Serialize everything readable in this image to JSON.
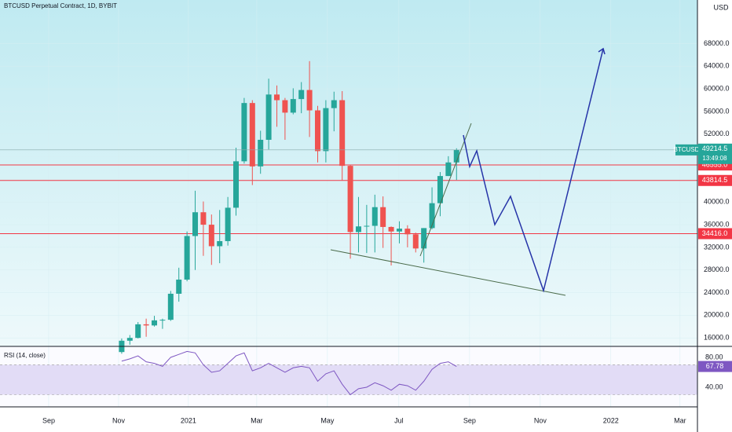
{
  "chart_data": {
    "type": "candlestick",
    "title": "BTCUSD Perpetual Contract, 1D, BYBIT",
    "currency": "USD",
    "symbol": "BTCUSD",
    "countdown": "13:49:08",
    "categories": [
      null,
      null,
      null,
      null,
      null,
      null,
      null,
      null,
      null,
      null,
      null,
      null,
      null,
      null,
      null,
      null,
      null,
      null,
      null,
      null,
      null,
      null,
      null,
      null,
      null,
      null,
      null,
      null,
      null,
      null,
      null,
      null,
      null,
      null,
      null,
      null,
      null,
      null,
      null,
      null,
      null,
      null
    ],
    "open": [
      13500,
      15500,
      16000,
      18400,
      18200,
      19100,
      19200,
      23800,
      26300,
      34000,
      38200,
      36000,
      32200,
      33100,
      39000,
      47200,
      57500,
      46300,
      51000,
      59000,
      58000,
      55800,
      58200,
      59800,
      56200,
      49000,
      56600,
      58000,
      46400,
      34700,
      35700,
      35800,
      39100,
      35600,
      34800,
      35300,
      34300,
      31800,
      35400,
      39800,
      44600,
      47000
    ],
    "high": [
      15900,
      16500,
      18800,
      19400,
      19900,
      19400,
      24300,
      28400,
      34800,
      42000,
      40100,
      37800,
      38600,
      40900,
      49600,
      58400,
      58000,
      52600,
      61800,
      60600,
      58400,
      60100,
      61200,
      64900,
      57000,
      58000,
      59500,
      59600,
      46600,
      40900,
      39500,
      41300,
      41000,
      35700,
      36600,
      35900,
      34600,
      35400,
      42600,
      45300,
      48100,
      49500
    ],
    "low": [
      13200,
      14800,
      15900,
      16200,
      18000,
      17600,
      19000,
      22400,
      26000,
      28000,
      30500,
      28900,
      29200,
      32300,
      37600,
      46800,
      43000,
      45000,
      49300,
      53300,
      51000,
      55500,
      55700,
      51500,
      47000,
      47000,
      52500,
      43800,
      30000,
      31100,
      31000,
      31100,
      31900,
      28800,
      32700,
      32000,
      31100,
      29300,
      35200,
      37500,
      44600,
      43900
    ],
    "close": [
      15500,
      16000,
      18400,
      18200,
      19100,
      19200,
      23800,
      26300,
      34000,
      38200,
      36000,
      32200,
      33100,
      39000,
      47200,
      57500,
      46300,
      51000,
      59000,
      58000,
      55800,
      58200,
      59800,
      56200,
      49000,
      56600,
      58000,
      46400,
      34700,
      35700,
      35800,
      39100,
      35600,
      34800,
      35300,
      34300,
      31800,
      35400,
      39800,
      44600,
      47000,
      49214.5
    ],
    "up_color": "#26a69a",
    "down_color": "#ef5350",
    "xlim": [
      -14.9,
      70.5
    ],
    "xticks": [
      {
        "value": -8.94,
        "label": "Sep"
      },
      {
        "value": -0.38,
        "label": "Nov"
      },
      {
        "value": 8.17,
        "label": "2021"
      },
      {
        "value": 16.54,
        "label": "Mar"
      },
      {
        "value": 25.19,
        "label": "May"
      },
      {
        "value": 33.94,
        "label": "Jul"
      },
      {
        "value": 42.6,
        "label": "Sep"
      },
      {
        "value": 51.25,
        "label": "Nov"
      },
      {
        "value": 59.9,
        "label": "2022"
      },
      {
        "value": 68.37,
        "label": "Mar"
      }
    ],
    "ylim": [
      14500,
      75700
    ],
    "yticks": [
      {
        "value": 16000,
        "label": "16000.0"
      },
      {
        "value": 20000,
        "label": "20000.0"
      },
      {
        "value": 24000,
        "label": "24000.0"
      },
      {
        "value": 28000,
        "label": "28000.0"
      },
      {
        "value": 32000,
        "label": "32000.0"
      },
      {
        "value": 36000,
        "label": "36000.0"
      },
      {
        "value": 40000,
        "label": "40000.0"
      },
      {
        "value": 44000,
        "label": "44000.0"
      },
      {
        "value": 48000,
        "label": "48000.0"
      },
      {
        "value": 52000,
        "label": "52000.0"
      },
      {
        "value": 56000,
        "label": "56000.0"
      },
      {
        "value": 60000,
        "label": "60000.0"
      },
      {
        "value": 64000,
        "label": "64000.0"
      },
      {
        "value": 68000,
        "label": "68000.0"
      }
    ],
    "levels": [
      {
        "value": 46555,
        "label": "46555.0"
      },
      {
        "value": 43814.5,
        "label": "43814.5"
      },
      {
        "value": 34416,
        "label": "34416.0"
      }
    ],
    "level_color": "#f23645",
    "rsi": {
      "title": "RSI (14, close)",
      "values": [
        75,
        78,
        82,
        74,
        72,
        68,
        80,
        84,
        88,
        86,
        70,
        60,
        62,
        72,
        82,
        86,
        62,
        66,
        72,
        66,
        60,
        66,
        68,
        66,
        48,
        58,
        62,
        44,
        30,
        38,
        40,
        46,
        42,
        36,
        44,
        42,
        36,
        48,
        64,
        72,
        74,
        67.78
      ],
      "ylim": [
        13.7,
        94.7
      ],
      "yticks": [
        {
          "value": 80,
          "label": "80.00"
        },
        {
          "value": 40,
          "label": "40.00"
        }
      ],
      "band": [
        30,
        70
      ],
      "color": "#7e57c2"
    }
  }
}
